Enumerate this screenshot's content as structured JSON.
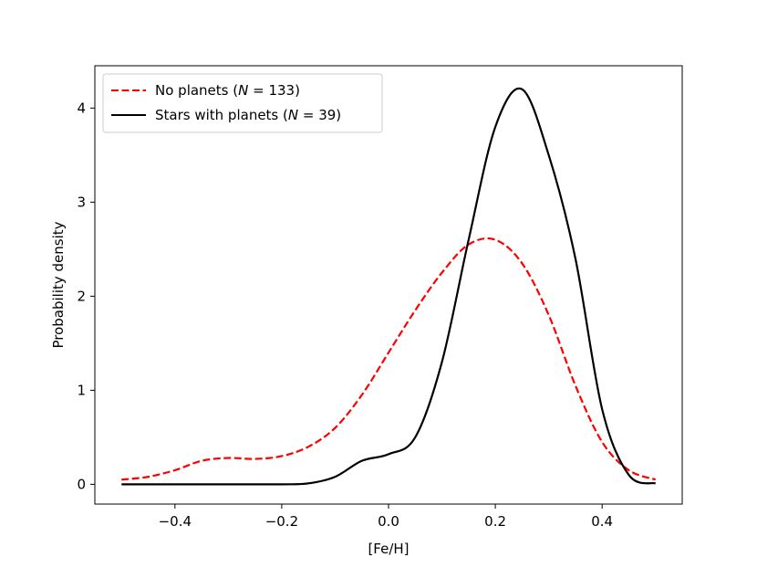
{
  "chart_data": {
    "type": "line",
    "title": "",
    "xlabel": "[Fe/H]",
    "ylabel": "Probability density",
    "xlim": [
      -0.55,
      0.55
    ],
    "ylim": [
      -0.21,
      4.45
    ],
    "xticks": [
      -0.4,
      -0.2,
      0.0,
      0.2,
      0.4
    ],
    "xtick_labels": [
      "−0.4",
      "−0.2",
      "0.0",
      "0.2",
      "0.4"
    ],
    "yticks": [
      0,
      1,
      2,
      3,
      4
    ],
    "ytick_labels": [
      "0",
      "1",
      "2",
      "3",
      "4"
    ],
    "grid": false,
    "legend_position": "top-left",
    "series": [
      {
        "name": "No planets",
        "legend_prefix": "No planets (",
        "legend_var": "N",
        "legend_suffix": " = 133)",
        "color": "#ff0000",
        "linestyle": "dashed",
        "x": [
          -0.5,
          -0.45,
          -0.4,
          -0.35,
          -0.3,
          -0.25,
          -0.2,
          -0.15,
          -0.1,
          -0.05,
          0.0,
          0.05,
          0.1,
          0.15,
          0.2,
          0.25,
          0.3,
          0.35,
          0.4,
          0.45,
          0.5
        ],
        "y": [
          0.05,
          0.08,
          0.15,
          0.25,
          0.28,
          0.27,
          0.3,
          0.4,
          0.6,
          0.95,
          1.4,
          1.85,
          2.25,
          2.55,
          2.6,
          2.35,
          1.8,
          1.05,
          0.45,
          0.15,
          0.05
        ]
      },
      {
        "name": "Stars with planets",
        "legend_prefix": "Stars with planets (",
        "legend_var": "N",
        "legend_suffix": " = 39)",
        "color": "#000000",
        "linestyle": "solid",
        "x": [
          -0.5,
          -0.4,
          -0.3,
          -0.2,
          -0.15,
          -0.1,
          -0.05,
          0.0,
          0.05,
          0.1,
          0.15,
          0.2,
          0.25,
          0.3,
          0.35,
          0.4,
          0.45,
          0.5
        ],
        "y": [
          0.0,
          0.0,
          0.0,
          0.0,
          0.01,
          0.08,
          0.25,
          0.32,
          0.5,
          1.3,
          2.6,
          3.8,
          4.2,
          3.5,
          2.4,
          0.8,
          0.1,
          0.01
        ]
      }
    ]
  }
}
